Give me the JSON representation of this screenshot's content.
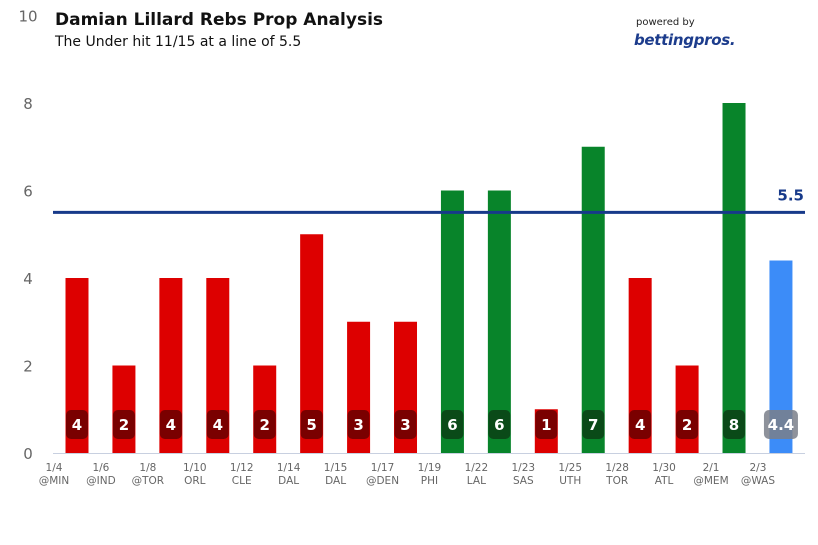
{
  "header": {
    "title": "Damian Lillard Rebs Prop Analysis",
    "subtitle": "The Under hit 11/15 at a line of 5.5",
    "powered_by": "powered by",
    "brand": "bettingpros",
    "brand_suffix": "."
  },
  "colors": {
    "under": "#dd0000",
    "over": "#08842a",
    "projection": "#3c8cf8",
    "under_label_bg": "#7a0000",
    "over_label_bg": "#0a4a18",
    "projection_label_bg": "#7a7f8a",
    "line": "#173a8a",
    "axis": "#c8d0e0",
    "tick_text": "#666666",
    "category_text": "#666666"
  },
  "chart_data": {
    "type": "bar",
    "title": "Damian Lillard Rebs Prop Analysis",
    "subtitle": "The Under hit 11/15 at a line of 5.5",
    "xlabel": "",
    "ylabel": "",
    "ylim": [
      0,
      10
    ],
    "yticks": [
      0,
      2,
      4,
      6,
      8,
      10
    ],
    "grid": false,
    "legend": "none",
    "line": {
      "value": 5.5,
      "label": "5.5"
    },
    "categories": [
      {
        "date": "1/4",
        "opp": "@MIN"
      },
      {
        "date": "1/6",
        "opp": "@IND"
      },
      {
        "date": "1/8",
        "opp": "@TOR"
      },
      {
        "date": "1/10",
        "opp": "ORL"
      },
      {
        "date": "1/12",
        "opp": "CLE"
      },
      {
        "date": "1/14",
        "opp": "DAL"
      },
      {
        "date": "1/15",
        "opp": "DAL"
      },
      {
        "date": "1/17",
        "opp": "@DEN"
      },
      {
        "date": "1/19",
        "opp": "PHI"
      },
      {
        "date": "1/22",
        "opp": "LAL"
      },
      {
        "date": "1/23",
        "opp": "SAS"
      },
      {
        "date": "1/25",
        "opp": "UTH"
      },
      {
        "date": "1/28",
        "opp": "TOR"
      },
      {
        "date": "1/30",
        "opp": "ATL"
      },
      {
        "date": "2/1",
        "opp": "@MEM"
      },
      {
        "date": "2/3",
        "opp": "@WAS"
      }
    ],
    "values": [
      4,
      2,
      4,
      4,
      2,
      5,
      3,
      3,
      6,
      6,
      1,
      7,
      4,
      2,
      8,
      4.4
    ],
    "labels": [
      "4",
      "2",
      "4",
      "4",
      "2",
      "5",
      "3",
      "3",
      "6",
      "6",
      "1",
      "7",
      "4",
      "2",
      "8",
      "4.4"
    ],
    "result": [
      "under",
      "under",
      "under",
      "under",
      "under",
      "under",
      "under",
      "under",
      "over",
      "over",
      "under",
      "over",
      "under",
      "under",
      "over",
      "projection"
    ]
  }
}
